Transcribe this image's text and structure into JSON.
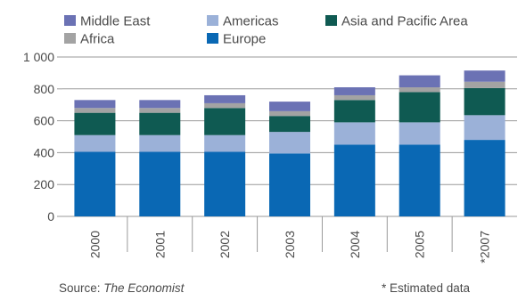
{
  "chart_data": {
    "type": "bar",
    "stacked": true,
    "categories": [
      "2000",
      "2001",
      "2002",
      "2003",
      "2004",
      "2005",
      "*2007"
    ],
    "series": [
      {
        "name": "Europe",
        "color": "#0a68b4",
        "values": [
          405,
          405,
          405,
          395,
          450,
          450,
          480
        ]
      },
      {
        "name": "Americas",
        "color": "#9bb1d8",
        "values": [
          105,
          105,
          105,
          135,
          140,
          140,
          155
        ]
      },
      {
        "name": "Asia and Pacific Area",
        "color": "#0f5a52",
        "values": [
          140,
          140,
          170,
          100,
          140,
          190,
          170
        ]
      },
      {
        "name": "Africa",
        "color": "#a3a3a3",
        "values": [
          30,
          30,
          30,
          30,
          30,
          30,
          40
        ]
      },
      {
        "name": "Middle East",
        "color": "#6b72b4",
        "values": [
          50,
          50,
          50,
          60,
          50,
          75,
          70
        ]
      }
    ],
    "legend_order": [
      "Middle East",
      "Americas",
      "Asia and Pacific Area",
      "Africa",
      "Europe"
    ],
    "ylim": [
      0,
      1000
    ],
    "yticks": [
      0,
      200,
      400,
      600,
      800,
      1000
    ],
    "ytick_labels": [
      "0",
      "200",
      "400",
      "600",
      "800",
      "1 000"
    ],
    "grid": true,
    "legend_position": "top"
  },
  "footer": {
    "source_prefix": "Source:",
    "source_name": "The Economist",
    "note": "* Estimated data"
  }
}
